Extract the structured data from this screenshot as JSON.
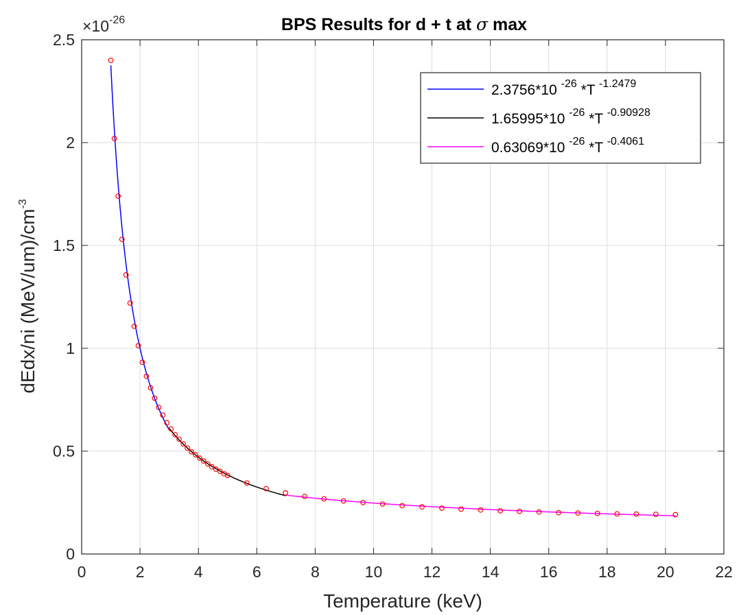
{
  "chart_data": {
    "type": "line",
    "title": "BPS Results for d + t at",
    "title_symbol": "σ",
    "title_suffix": "max",
    "xlabel": "Temperature (keV)",
    "ylabel": "dEdx/ni (MeV/um)/cm",
    "ylabel_exponent": "-3",
    "y_multiplier_base": "×10",
    "y_multiplier_exponent": "-26",
    "xlim": [
      0,
      22
    ],
    "ylim": [
      0,
      2.5
    ],
    "x_ticks": [
      0,
      2,
      4,
      6,
      8,
      10,
      12,
      14,
      16,
      18,
      20,
      22
    ],
    "x_tick_labels": [
      "0",
      "2",
      "4",
      "6",
      "8",
      "10",
      "12",
      "14",
      "16",
      "18",
      "20",
      "22"
    ],
    "y_ticks": [
      0,
      0.5,
      1,
      1.5,
      2,
      2.5
    ],
    "y_tick_labels": [
      "0",
      "0.5",
      "1",
      "1.5",
      "2",
      "2.5"
    ],
    "grid": true,
    "legend_position": "top-right",
    "series": [
      {
        "name": "2.3756*10 ^-26 *T ^-1.2479",
        "name_parts": [
          "2.3756*10 ",
          "-26",
          " *T ",
          "-1.2479"
        ],
        "kind": "fit",
        "color": "#0000ff",
        "coef": 2.3756,
        "exponent": -1.2479,
        "x_range": [
          1.0,
          3.0
        ]
      },
      {
        "name": "1.65995*10 ^-26 *T ^-0.90928",
        "name_parts": [
          "1.65995*10 ",
          "-26",
          " *T ",
          "-0.90928"
        ],
        "kind": "fit",
        "color": "#000000",
        "coef": 1.65995,
        "exponent": -0.90928,
        "x_range": [
          3.0,
          7.0
        ]
      },
      {
        "name": "0.63069*10 ^-26 *T ^-0.4061",
        "name_parts": [
          "0.63069*10 ",
          "-26",
          " *T ",
          "-0.4061"
        ],
        "kind": "fit",
        "color": "#ff00ff",
        "coef": 0.63069,
        "exponent": -0.4061,
        "x_range": [
          7.0,
          20.35
        ]
      }
    ],
    "points": {
      "kind": "data",
      "marker": "circle",
      "color": "#ff0000",
      "x": [
        1.0,
        1.12,
        1.25,
        1.38,
        1.52,
        1.66,
        1.8,
        1.94,
        2.08,
        2.22,
        2.36,
        2.5,
        2.64,
        2.78,
        2.92,
        3.06,
        3.2,
        3.34,
        3.48,
        3.62,
        3.76,
        3.9,
        4.04,
        4.18,
        4.32,
        4.46,
        4.6,
        4.74,
        4.88,
        5.0,
        5.66,
        6.32,
        6.98,
        7.64,
        8.3,
        8.97,
        9.64,
        10.31,
        10.98,
        11.66,
        12.34,
        13.0,
        13.67,
        14.34,
        15.0,
        15.67,
        16.34,
        17.0,
        17.67,
        18.34,
        19.0,
        19.67,
        20.34
      ],
      "y": [
        2.4,
        2.02,
        1.74,
        1.53,
        1.357,
        1.22,
        1.107,
        1.013,
        0.932,
        0.864,
        0.808,
        0.757,
        0.713,
        0.675,
        0.638,
        0.608,
        0.58,
        0.558,
        0.535,
        0.515,
        0.497,
        0.482,
        0.466,
        0.452,
        0.438,
        0.424,
        0.412,
        0.402,
        0.39,
        0.382,
        0.345,
        0.318,
        0.297,
        0.28,
        0.268,
        0.258,
        0.25,
        0.243,
        0.235,
        0.229,
        0.223,
        0.218,
        0.214,
        0.21,
        0.207,
        0.204,
        0.201,
        0.199,
        0.197,
        0.195,
        0.194,
        0.193,
        0.191
      ]
    }
  }
}
